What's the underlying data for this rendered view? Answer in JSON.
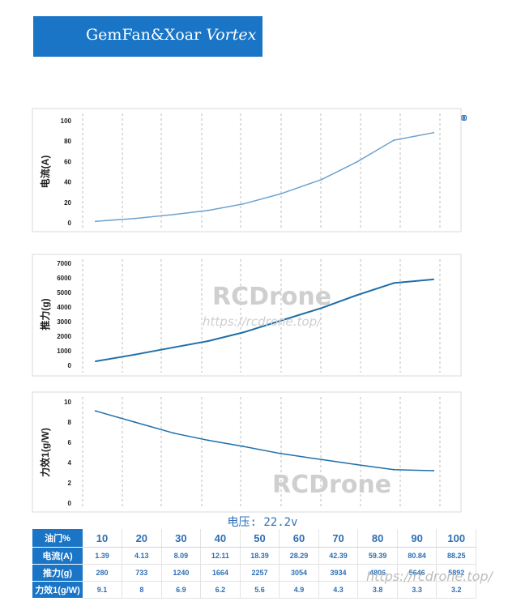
{
  "header": {
    "brand": "GemFan&Xoar",
    "model": "Vortex"
  },
  "x_top_ticks": [
    "10",
    "20",
    "30",
    "40",
    "50",
    "60",
    "70",
    "80",
    "90",
    "100"
  ],
  "x_top_tick_overlay": "0",
  "watermark": {
    "brand_1": "RCDrone",
    "url_1": "https://rcdrone.top/",
    "brand_2": "RCDrone",
    "url_2": "https://rcdrone.top/"
  },
  "voltage_label": "电压: 22.2v",
  "table": {
    "row_headers": [
      "油门%",
      "电流(A)",
      "推力(g)",
      "力效1(g/W)"
    ],
    "throttle": [
      "10",
      "20",
      "30",
      "40",
      "50",
      "60",
      "70",
      "80",
      "90",
      "100"
    ],
    "current": [
      "1.39",
      "4.13",
      "8.09",
      "12.11",
      "18.39",
      "28.29",
      "42.39",
      "59.39",
      "80.84",
      "88.25"
    ],
    "thrust": [
      "280",
      "733",
      "1240",
      "1664",
      "2257",
      "3054",
      "3934",
      "4806",
      "5646",
      "5892"
    ],
    "efficiency": [
      "9.1",
      "8",
      "6.9",
      "6.2",
      "5.6",
      "4.9",
      "4.3",
      "3.8",
      "3.3",
      "3.2"
    ]
  },
  "colors": {
    "brand_blue": "#1a75c7",
    "line_light": "#6fa3cf",
    "line_dark": "#1e6fa8",
    "tick_blue": "#2e6fb5"
  },
  "chart_data": [
    {
      "type": "line",
      "ylabel": "电流(A)",
      "x": [
        10,
        20,
        30,
        40,
        50,
        60,
        70,
        80,
        90,
        100
      ],
      "values": [
        1.39,
        4.13,
        8.09,
        12.11,
        18.39,
        28.29,
        42.39,
        59.39,
        80.84,
        88.25
      ],
      "yticks": [
        "0",
        "20",
        "40",
        "60",
        "80",
        "100"
      ],
      "ylim": [
        0,
        100
      ],
      "grid": "vertical-dashed"
    },
    {
      "type": "line",
      "ylabel": "推力(g)",
      "x": [
        10,
        20,
        30,
        40,
        50,
        60,
        70,
        80,
        90,
        100
      ],
      "values": [
        280,
        733,
        1240,
        1664,
        2257,
        3054,
        3934,
        4806,
        5646,
        5892
      ],
      "yticks": [
        "0",
        "1000",
        "2000",
        "3000",
        "4000",
        "5000",
        "6000",
        "7000"
      ],
      "ylim": [
        0,
        7000
      ],
      "grid": "vertical-dashed"
    },
    {
      "type": "line",
      "ylabel": "力效1(g/W)",
      "x": [
        10,
        20,
        30,
        40,
        50,
        60,
        70,
        80,
        90,
        100
      ],
      "values": [
        9.1,
        8,
        6.9,
        6.2,
        5.6,
        4.9,
        4.3,
        3.8,
        3.3,
        3.2
      ],
      "yticks": [
        "0",
        "2",
        "4",
        "6",
        "8",
        "10"
      ],
      "ylim": [
        0,
        10
      ],
      "grid": "vertical-dashed"
    }
  ]
}
